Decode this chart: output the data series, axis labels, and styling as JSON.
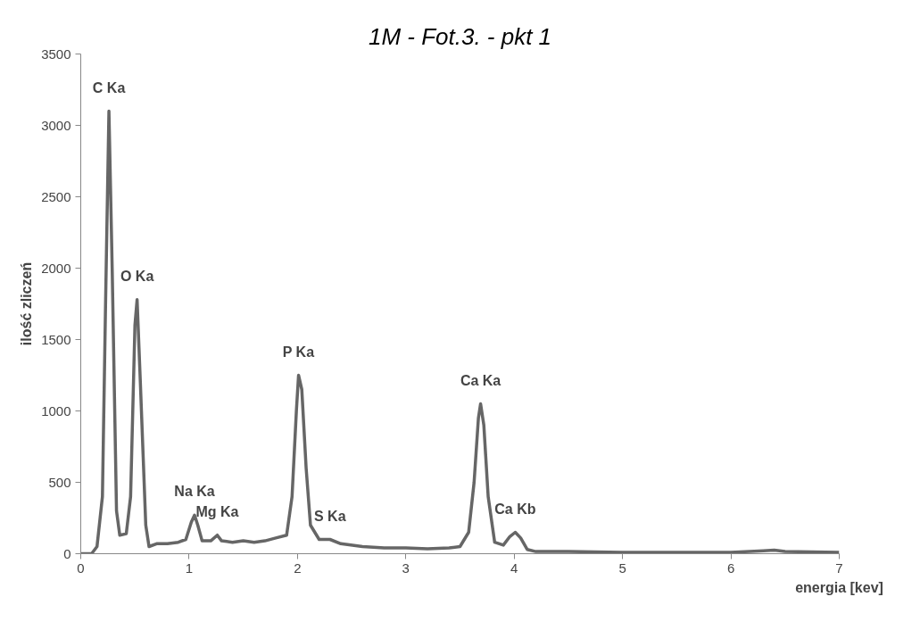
{
  "chart_data": {
    "type": "line",
    "title": "1M - Fot.3. - pkt 1",
    "xlabel": "energia [kev]",
    "ylabel": "ilość zliczeń",
    "x": [
      0,
      0.1,
      0.15,
      0.2,
      0.23,
      0.26,
      0.29,
      0.33,
      0.36,
      0.42,
      0.46,
      0.5,
      0.52,
      0.55,
      0.6,
      0.63,
      0.7,
      0.8,
      0.9,
      0.97,
      1.02,
      1.05,
      1.08,
      1.12,
      1.2,
      1.26,
      1.3,
      1.4,
      1.5,
      1.6,
      1.7,
      1.8,
      1.9,
      1.95,
      1.99,
      2.01,
      2.04,
      2.08,
      2.12,
      2.2,
      2.3,
      2.4,
      2.6,
      2.8,
      3.0,
      3.2,
      3.4,
      3.5,
      3.58,
      3.63,
      3.67,
      3.69,
      3.72,
      3.76,
      3.82,
      3.9,
      3.96,
      4.01,
      4.06,
      4.12,
      4.2,
      4.5,
      5,
      5.5,
      6,
      6.3,
      6.4,
      6.5,
      7
    ],
    "series": [
      {
        "color": "#666666",
        "values": [
          0,
          0,
          50,
          400,
          1800,
          3100,
          2000,
          300,
          130,
          140,
          400,
          1600,
          1780,
          1200,
          200,
          50,
          70,
          70,
          80,
          100,
          220,
          270,
          200,
          90,
          90,
          130,
          90,
          80,
          90,
          80,
          90,
          110,
          130,
          400,
          1000,
          1250,
          1150,
          600,
          200,
          100,
          100,
          70,
          50,
          40,
          40,
          35,
          40,
          50,
          150,
          500,
          950,
          1050,
          900,
          400,
          80,
          60,
          120,
          150,
          110,
          30,
          15,
          15,
          10,
          10,
          10,
          20,
          25,
          15,
          10
        ]
      }
    ],
    "xlim": [
      0,
      7
    ],
    "ylim": [
      0,
      3500
    ],
    "xticks": [
      0,
      1,
      2,
      3,
      4,
      5,
      6,
      7
    ],
    "yticks": [
      0,
      500,
      1000,
      1500,
      2000,
      2500,
      3000,
      3500
    ],
    "grid": false,
    "marker": "none",
    "line_style": "solid",
    "annotations": [
      {
        "text": "C Ka",
        "x": 0.26,
        "y": 3100
      },
      {
        "text": "O Ka",
        "x": 0.52,
        "y": 1780
      },
      {
        "text": "Na Ka",
        "x": 1.05,
        "y": 270
      },
      {
        "text": "Mg Ka",
        "x": 1.26,
        "y": 130
      },
      {
        "text": "P Ka",
        "x": 2.01,
        "y": 1250
      },
      {
        "text": "S Ka",
        "x": 2.3,
        "y": 100
      },
      {
        "text": "Ca Ka",
        "x": 3.69,
        "y": 1050
      },
      {
        "text": "Ca Kb",
        "x": 4.01,
        "y": 150
      }
    ]
  }
}
